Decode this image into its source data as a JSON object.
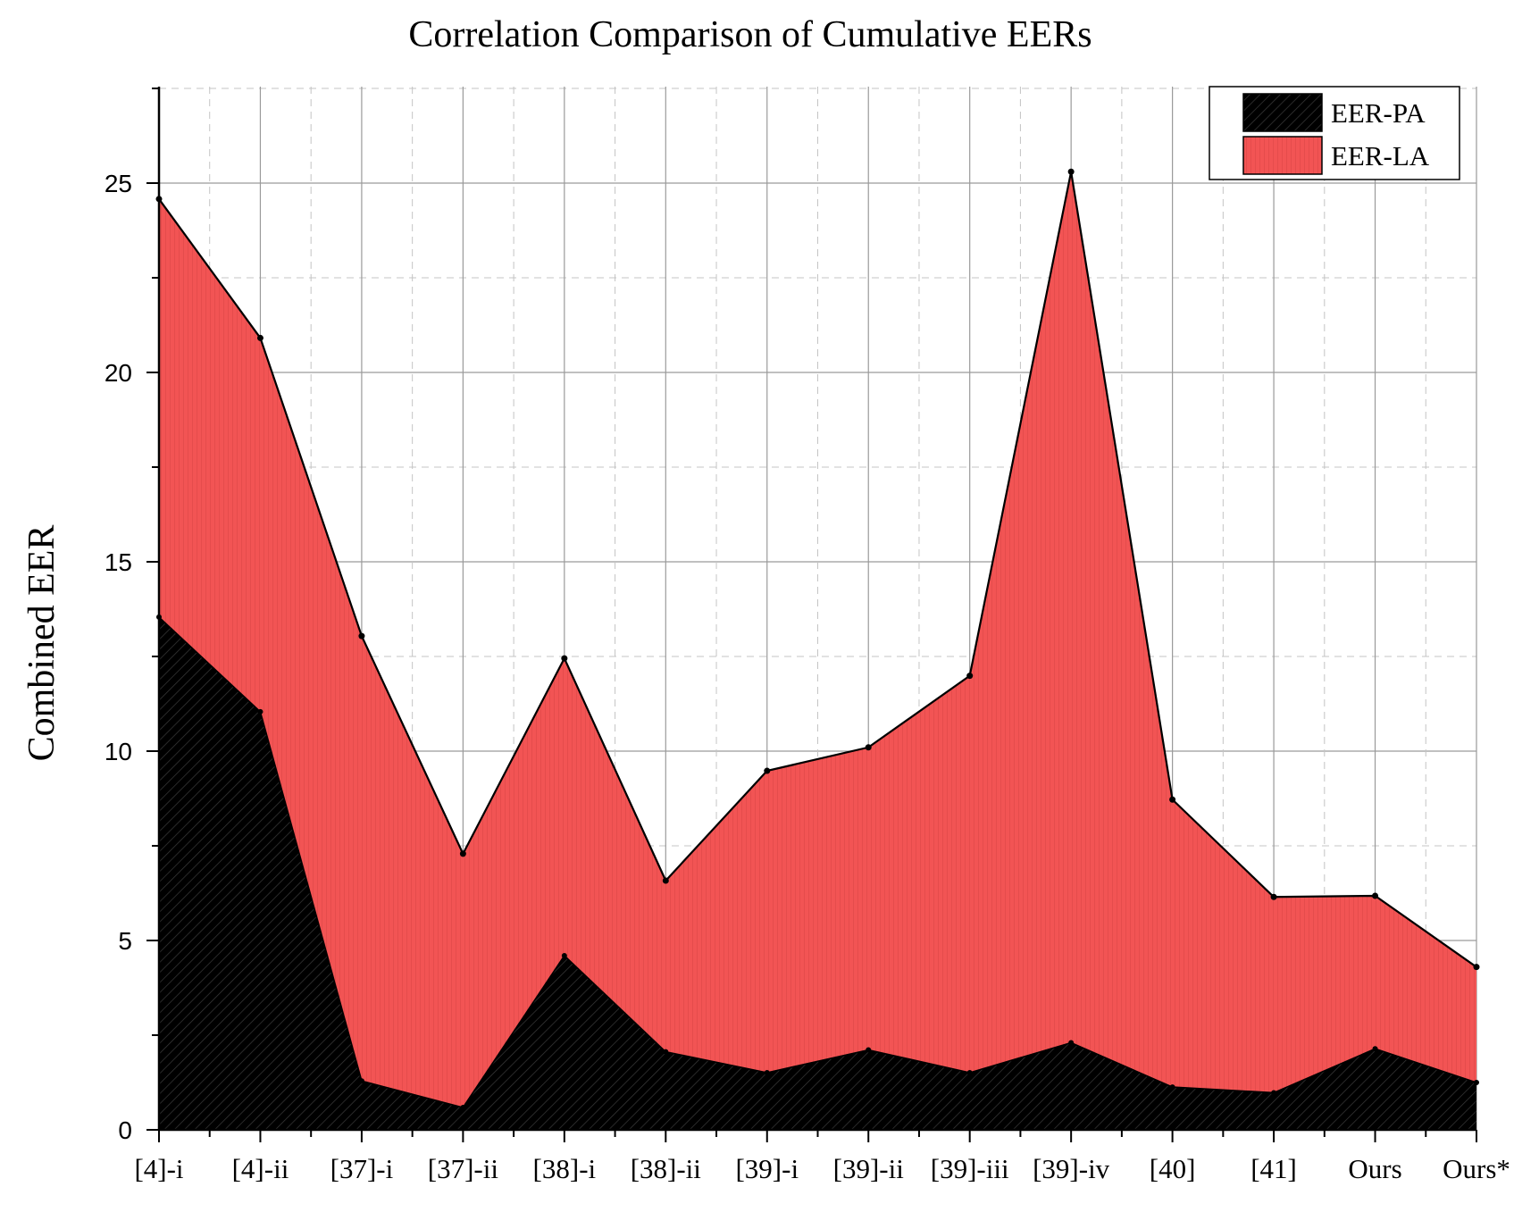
{
  "chart_data": {
    "type": "area",
    "stacked": true,
    "title": "Correlation Comparison of Cumulative EERs",
    "xlabel": "",
    "ylabel": "Combined EER",
    "ylim": [
      0,
      27.5
    ],
    "yticks": [
      0,
      5,
      10,
      15,
      20,
      25
    ],
    "grid": true,
    "legend_position": "top-right",
    "categories": [
      "[4]-i",
      "[4]-ii",
      "[37]-i",
      "[37]-ii",
      "[38]-i",
      "[38]-ii",
      "[39]-i",
      "[39]-ii",
      "[39]-iii",
      "[39]-iv",
      "[40]",
      "[41]",
      "Ours",
      "Ours*"
    ],
    "series": [
      {
        "name": "EER-PA",
        "color": "#000000",
        "values": [
          13.54,
          11.04,
          1.29,
          0.59,
          4.6,
          2.06,
          1.51,
          2.11,
          1.51,
          2.3,
          1.13,
          0.98,
          2.14,
          1.25
        ]
      },
      {
        "name": "EER-LA",
        "color": "#f05050",
        "values": [
          11.04,
          9.87,
          11.75,
          6.7,
          7.85,
          4.52,
          7.97,
          7.99,
          10.48,
          23.0,
          7.59,
          5.17,
          4.04,
          3.05
        ]
      }
    ],
    "cumulative_totals": [
      24.58,
      20.91,
      13.04,
      7.29,
      12.45,
      6.58,
      9.48,
      10.1,
      11.99,
      25.3,
      8.72,
      6.15,
      6.18,
      4.3
    ]
  }
}
